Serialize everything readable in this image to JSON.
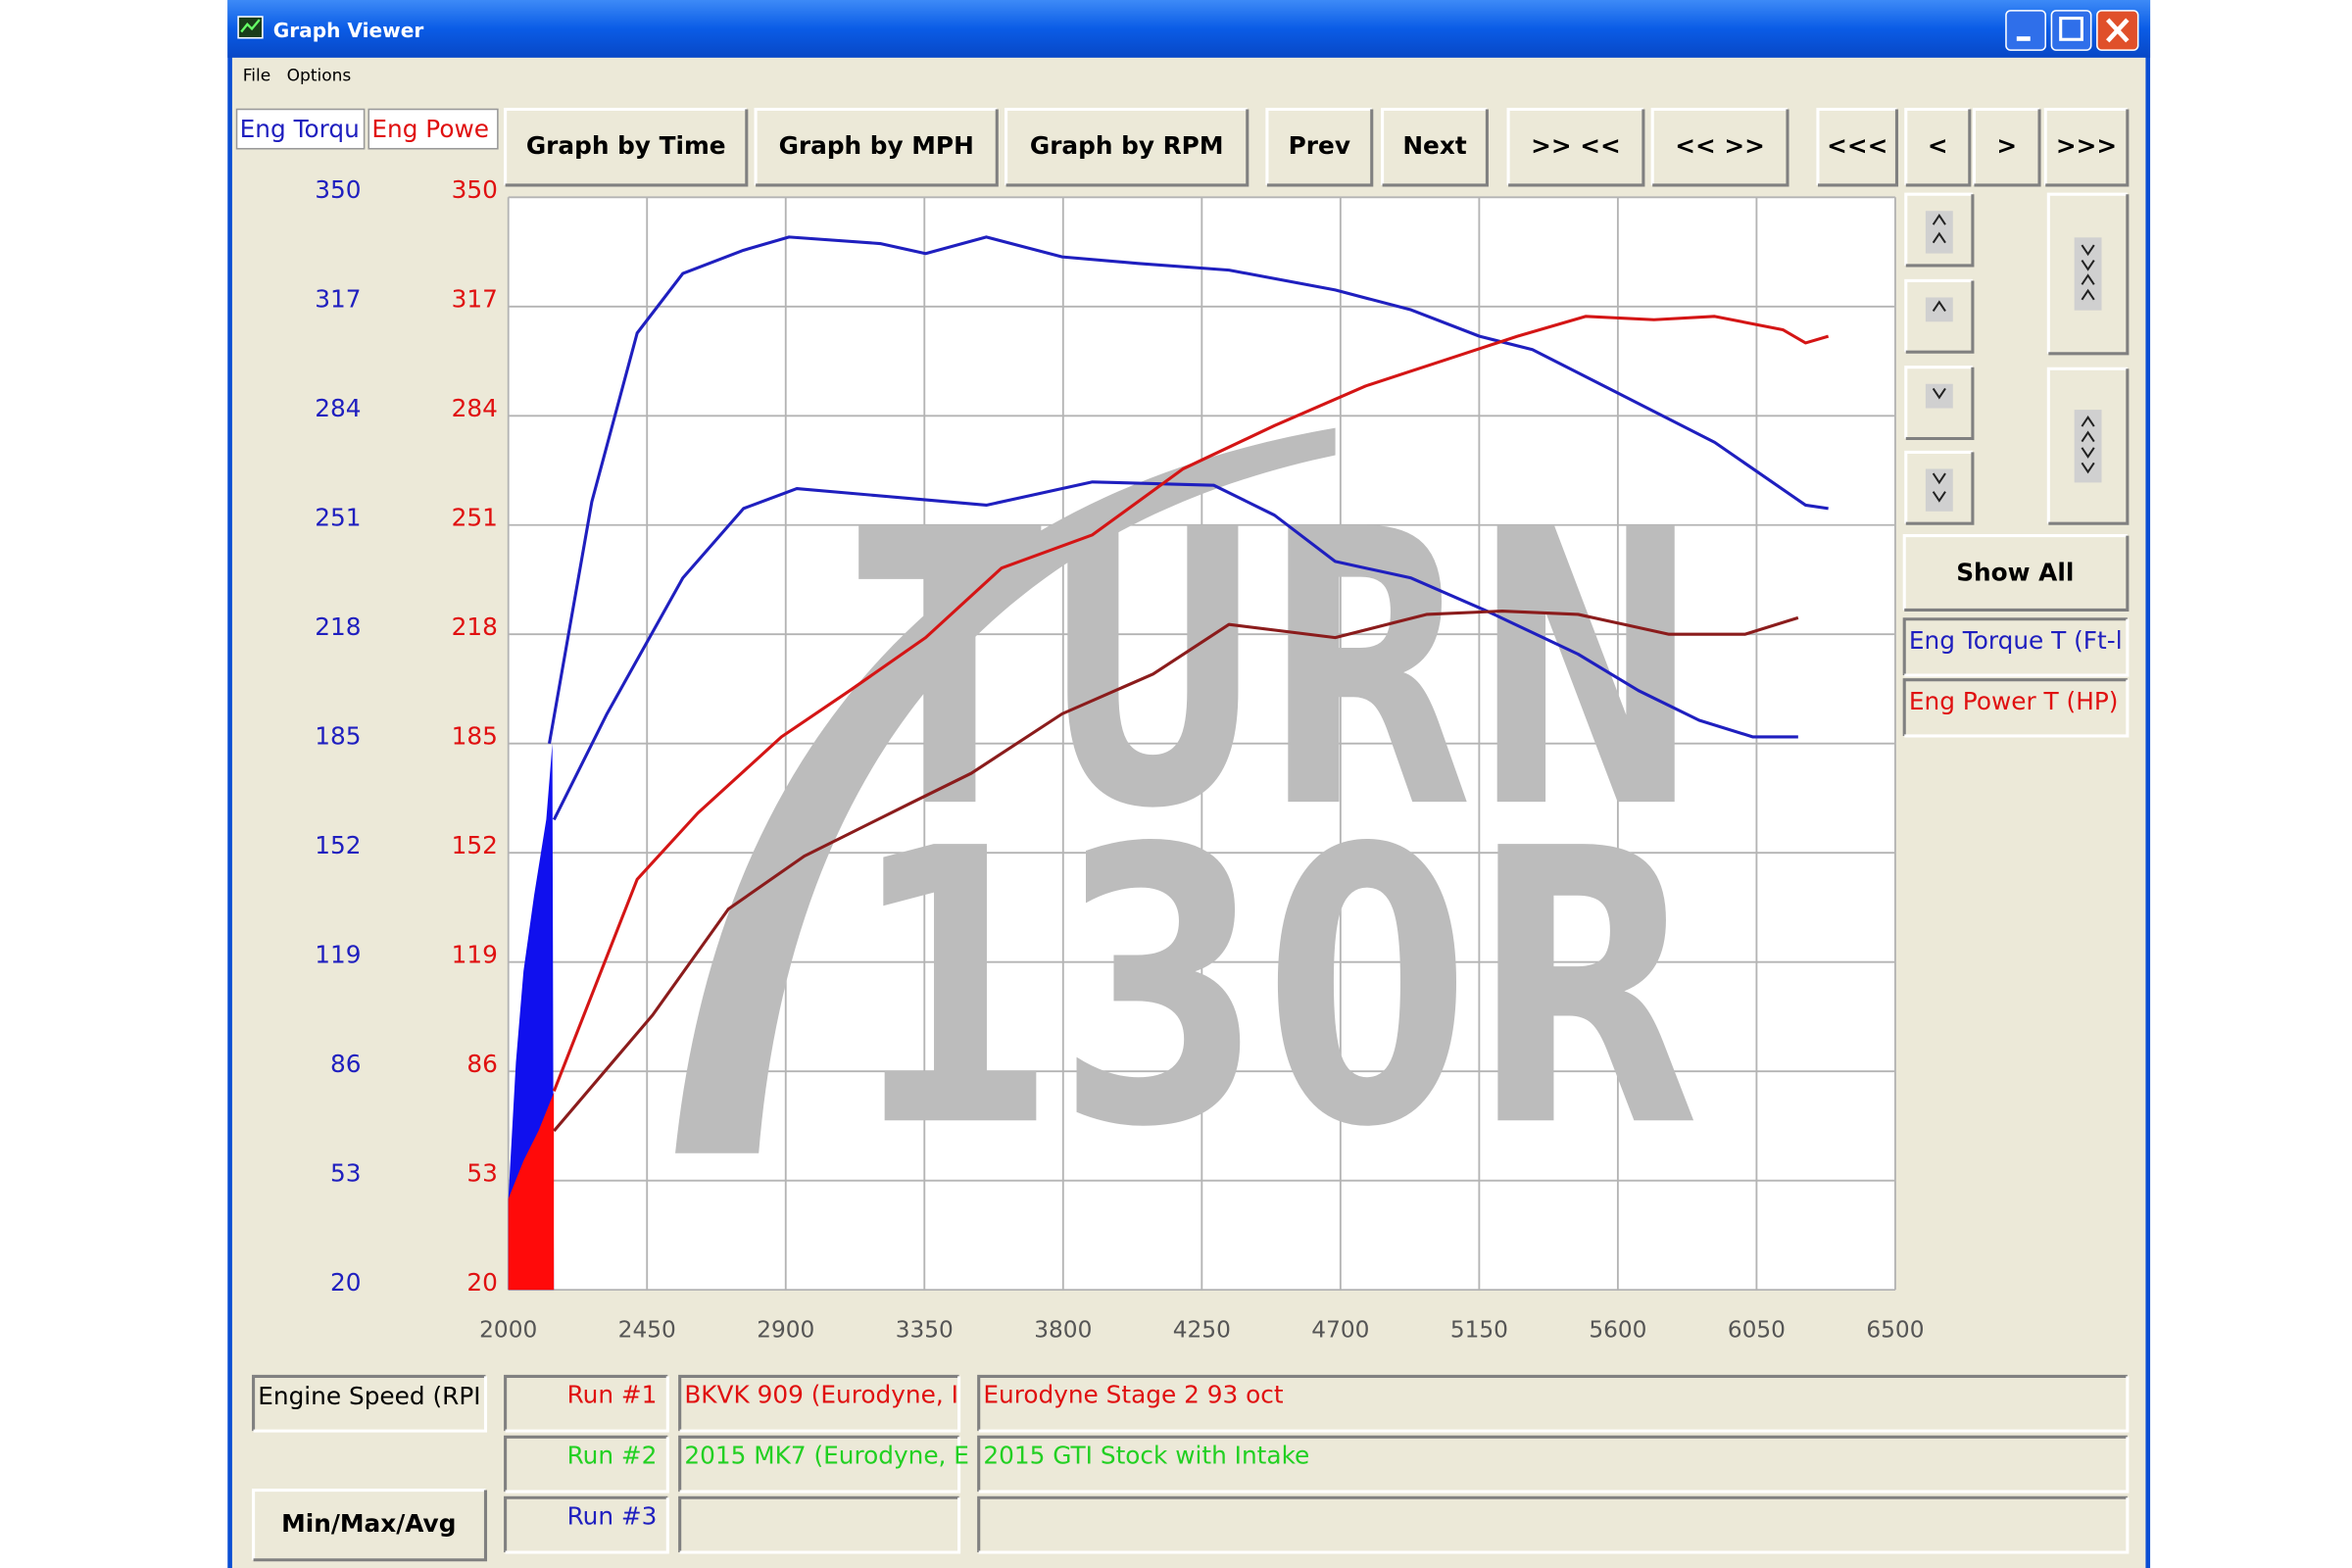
{
  "window": {
    "title": "Graph Viewer",
    "menu": [
      "File",
      "Options"
    ]
  },
  "toolbar": {
    "tabs": [
      "Eng Torqu",
      "Eng Powe"
    ],
    "buttons": [
      "Graph by Time",
      "Graph by MPH",
      "Graph by RPM",
      "Prev",
      "Next",
      ">> <<",
      "<< >>",
      "<<<",
      "<",
      ">",
      ">>>"
    ]
  },
  "side": {
    "button": "Show All",
    "legend": [
      "Eng Torque T (Ft-l",
      "Eng Power T (HP)"
    ]
  },
  "watermark": [
    "TURN",
    "130R"
  ],
  "chart_data": {
    "type": "line",
    "xlim": [
      2000,
      6500
    ],
    "xticks": [
      2000,
      2450,
      2900,
      3350,
      3800,
      4250,
      4700,
      5150,
      5600,
      6050,
      6500
    ],
    "ylim": [
      20,
      350
    ],
    "yticks": [
      20,
      53,
      86,
      119,
      152,
      185,
      218,
      251,
      284,
      317,
      350
    ],
    "y2lim": [
      20,
      350
    ],
    "y2ticks": [
      20,
      53,
      86,
      119,
      152,
      185,
      218,
      251,
      284,
      317,
      350
    ],
    "grid": true,
    "series": [
      {
        "color": "#1f1fbf",
        "axis": "y",
        "x": [
          2133,
          2271,
          2418,
          2566,
          2763,
          2911,
          3206,
          3354,
          3551,
          3797,
          4043,
          4338,
          4683,
          4929,
          5151,
          5323,
          5618,
          5914,
          6209,
          6283
        ],
        "values": [
          185,
          258,
          309,
          327,
          334,
          338,
          336,
          333,
          338,
          332,
          330,
          328,
          322,
          316,
          308,
          304,
          290,
          276,
          257,
          256
        ]
      },
      {
        "color": "#1f1fbf",
        "axis": "y",
        "x": [
          2148,
          2320,
          2566,
          2763,
          2936,
          3305,
          3551,
          3895,
          4289,
          4486,
          4683,
          4929,
          5175,
          5471,
          5667,
          5864,
          6037,
          6185
        ],
        "values": [
          162,
          194,
          235,
          256,
          262,
          259,
          257,
          264,
          263,
          254,
          240,
          235,
          225,
          212,
          201,
          192,
          187,
          187
        ]
      },
      {
        "color": "#d41515",
        "axis": "y2",
        "x": [
          2148,
          2418,
          2615,
          2886,
          3108,
          3354,
          3600,
          3895,
          4190,
          4486,
          4781,
          5077,
          5274,
          5495,
          5717,
          5914,
          6135,
          6209,
          6283
        ],
        "values": [
          80,
          144,
          164,
          187,
          201,
          217,
          238,
          248,
          268,
          281,
          293,
          302,
          308,
          314,
          313,
          314,
          310,
          306,
          308
        ]
      },
      {
        "color": "#8b1c1c",
        "axis": "y2",
        "x": [
          2148,
          2468,
          2714,
          2960,
          3305,
          3502,
          3797,
          4092,
          4338,
          4683,
          4979,
          5225,
          5471,
          5766,
          6012,
          6185
        ],
        "values": [
          68,
          103,
          135,
          151,
          167,
          176,
          194,
          206,
          221,
          217,
          224,
          225,
          224,
          218,
          218,
          223
        ]
      }
    ]
  },
  "footer": {
    "x_channel": "Engine Speed (RPI",
    "button": "Min/Max/Avg",
    "runs": [
      {
        "label": "Run #1",
        "color": "#e01010",
        "vehicle": "BKVK 909 (Eurodyne, I",
        "description": "Eurodyne Stage 2 93 oct"
      },
      {
        "label": "Run #2",
        "color": "#22d022",
        "vehicle": "2015 MK7 (Eurodyne, E",
        "description": "2015 GTI Stock with Intake"
      },
      {
        "label": "Run #3",
        "color": "#1f1fbf"
      }
    ]
  }
}
